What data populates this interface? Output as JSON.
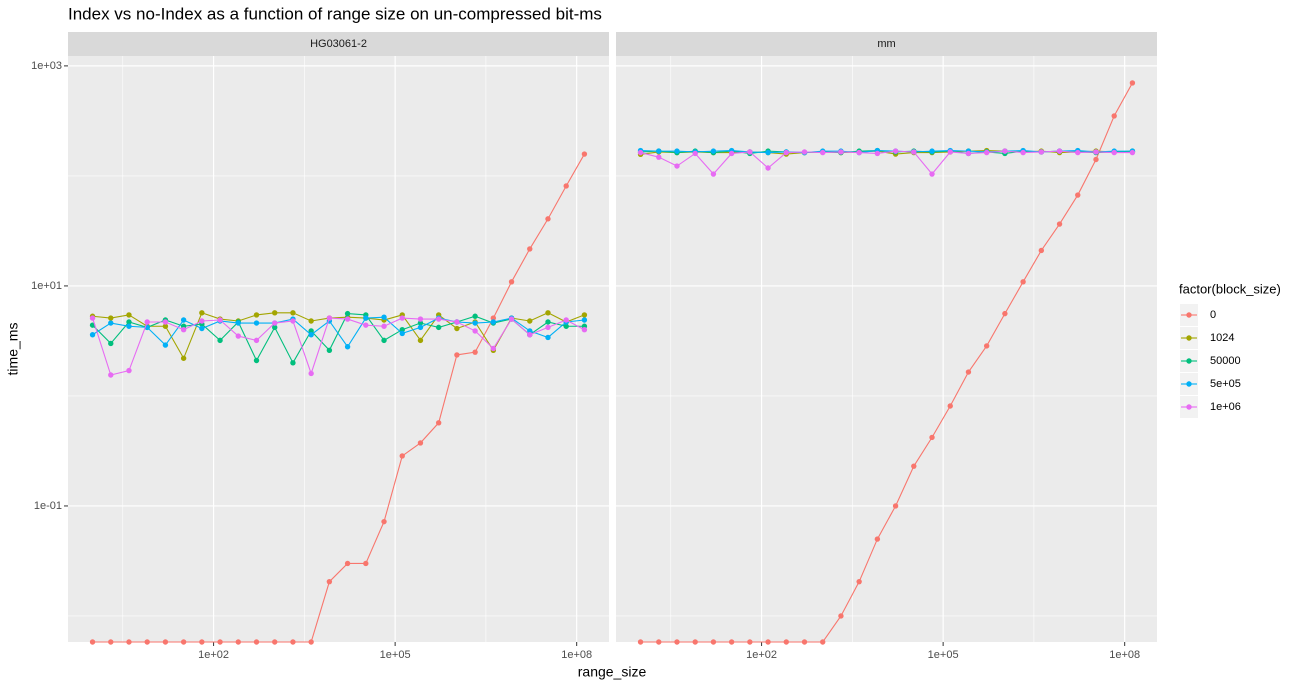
{
  "title": "Index vs no-Index as a function of range size on un-compressed bit-ms",
  "x_label": "range_size",
  "y_label": "time_ms",
  "legend_title": "factor(block_size)",
  "legend_position": "right",
  "chart_data": [
    {
      "type": "line",
      "strip": "HG03061-2",
      "x_log": true,
      "y_log": true,
      "grid": true,
      "x": [
        1,
        2,
        4,
        8,
        16,
        32,
        64,
        128,
        256,
        512,
        1024,
        2048,
        4096,
        8192,
        16384,
        32768,
        65536,
        131072,
        262144,
        524288,
        1048576,
        2097152,
        4194304,
        8388608,
        16777216,
        33554432,
        67108864,
        134217728
      ],
      "xlim": [
        0.393,
        342000000
      ],
      "ylim": [
        0.0058,
        1230
      ],
      "xticks": [
        {
          "value": 100,
          "label": "1e+02"
        },
        {
          "value": 100000,
          "label": "1e+05"
        },
        {
          "value": 100000000,
          "label": "1e+08"
        }
      ],
      "yticks": [
        {
          "value": 0.1,
          "label": "1e-01"
        },
        {
          "value": 10,
          "label": "1e+01"
        },
        {
          "value": 1000,
          "label": "1e+03"
        }
      ],
      "x_minor_ticks": [
        3.16,
        3162,
        3162278
      ],
      "y_minor_ticks": [
        0.01,
        1,
        100
      ],
      "series": [
        {
          "name": "0",
          "color": "#F8766D",
          "values": [
            0,
            0,
            0,
            0,
            0,
            0,
            0,
            0,
            0,
            0,
            0,
            0,
            0,
            0.0205,
            0.03,
            0.03,
            0.072,
            0.285,
            0.374,
            0.57,
            2.36,
            2.5,
            5.1,
            10.9,
            21.7,
            40.7,
            81,
            158
          ]
        },
        {
          "name": "1024",
          "color": "#A3A500",
          "values": [
            5.3,
            5.1,
            5.45,
            4.3,
            4.3,
            2.2,
            5.7,
            5.0,
            4.8,
            5.45,
            5.7,
            5.7,
            4.8,
            5.1,
            5.2,
            5.1,
            4.9,
            5.45,
            3.2,
            5.45,
            4.1,
            4.7,
            2.6,
            5.1,
            4.8,
            5.7,
            4.7,
            5.45
          ]
        },
        {
          "name": "50000",
          "color": "#00BF7D",
          "values": [
            4.4,
            3.0,
            4.7,
            4.2,
            4.9,
            4.3,
            4.5,
            3.2,
            4.7,
            2.1,
            4.2,
            2.0,
            3.9,
            2.6,
            5.6,
            5.45,
            3.2,
            4.0,
            4.6,
            4.2,
            4.7,
            5.3,
            4.6,
            5.0,
            3.6,
            4.7,
            4.3,
            4.3
          ]
        },
        {
          "name": "5e+05",
          "color": "#00B0F6",
          "values": [
            3.6,
            4.6,
            4.3,
            4.2,
            2.9,
            4.9,
            4.1,
            4.8,
            4.6,
            4.6,
            4.6,
            5.0,
            3.6,
            4.8,
            2.8,
            5.1,
            5.2,
            3.7,
            4.2,
            5.1,
            4.7,
            4.6,
            4.7,
            5.1,
            3.9,
            3.4,
            4.7,
            4.9
          ]
        },
        {
          "name": "1e+06",
          "color": "#E76BF3",
          "values": [
            5.1,
            1.55,
            1.7,
            4.7,
            4.7,
            4.0,
            4.8,
            4.9,
            3.5,
            3.2,
            4.6,
            4.8,
            1.6,
            5.1,
            5.0,
            4.4,
            4.3,
            5.1,
            5.0,
            5.0,
            4.7,
            3.9,
            2.7,
            5.0,
            3.6,
            4.2,
            4.9,
            4.0
          ]
        }
      ]
    },
    {
      "type": "line",
      "strip": "mm",
      "x_log": true,
      "y_log": true,
      "grid": true,
      "x": [
        1,
        2,
        4,
        8,
        16,
        32,
        64,
        128,
        256,
        512,
        1024,
        2048,
        4096,
        8192,
        16384,
        32768,
        65536,
        131072,
        262144,
        524288,
        1048576,
        2097152,
        4194304,
        8388608,
        16777216,
        33554432,
        67108864,
        134217728
      ],
      "xlim": [
        0.393,
        342000000
      ],
      "ylim": [
        0.0058,
        1230
      ],
      "xticks": [
        {
          "value": 100,
          "label": "1e+02"
        },
        {
          "value": 100000,
          "label": "1e+05"
        },
        {
          "value": 100000000,
          "label": "1e+08"
        }
      ],
      "yticks": [
        {
          "value": 0.1,
          "label": "1e-01"
        },
        {
          "value": 10,
          "label": "1e+01"
        },
        {
          "value": 1000,
          "label": "1e+03"
        }
      ],
      "x_minor_ticks": [
        3.16,
        3162,
        3162278
      ],
      "y_minor_ticks": [
        0.01,
        1,
        100
      ],
      "series": [
        {
          "name": "0",
          "color": "#F8766D",
          "values": [
            0,
            0,
            0,
            0,
            0,
            0,
            0,
            0,
            0,
            0,
            0,
            0.01,
            0.0205,
            0.05,
            0.1,
            0.23,
            0.42,
            0.81,
            1.65,
            2.85,
            5.6,
            10.9,
            21,
            36.5,
            67,
            141,
            351,
            700
          ]
        },
        {
          "name": "1024",
          "color": "#A3A500",
          "values": [
            157,
            165,
            163,
            165,
            163,
            163,
            165,
            163,
            158,
            163,
            165,
            163,
            165,
            168,
            158,
            163,
            163,
            165,
            168,
            170,
            168,
            165,
            168,
            163,
            165,
            168,
            165,
            165
          ]
        },
        {
          "name": "50000",
          "color": "#00BF7D",
          "values": [
            165,
            168,
            163,
            168,
            163,
            168,
            160,
            168,
            165,
            163,
            165,
            163,
            168,
            170,
            165,
            168,
            165,
            168,
            160,
            165,
            160,
            168,
            165,
            168,
            165,
            163,
            165,
            168
          ]
        },
        {
          "name": "5e+05",
          "color": "#00B0F6",
          "values": [
            170,
            168,
            168,
            165,
            168,
            170,
            165,
            163,
            165,
            163,
            168,
            168,
            163,
            170,
            168,
            165,
            168,
            170,
            168,
            165,
            168,
            170,
            165,
            168,
            170,
            165,
            168,
            168
          ]
        },
        {
          "name": "1e+06",
          "color": "#E76BF3",
          "values": [
            163,
            148,
            123,
            160,
            104,
            160,
            165,
            118,
            163,
            165,
            163,
            165,
            163,
            160,
            168,
            165,
            104,
            165,
            160,
            163,
            168,
            163,
            165,
            168,
            163,
            165,
            163,
            163
          ]
        }
      ]
    }
  ]
}
